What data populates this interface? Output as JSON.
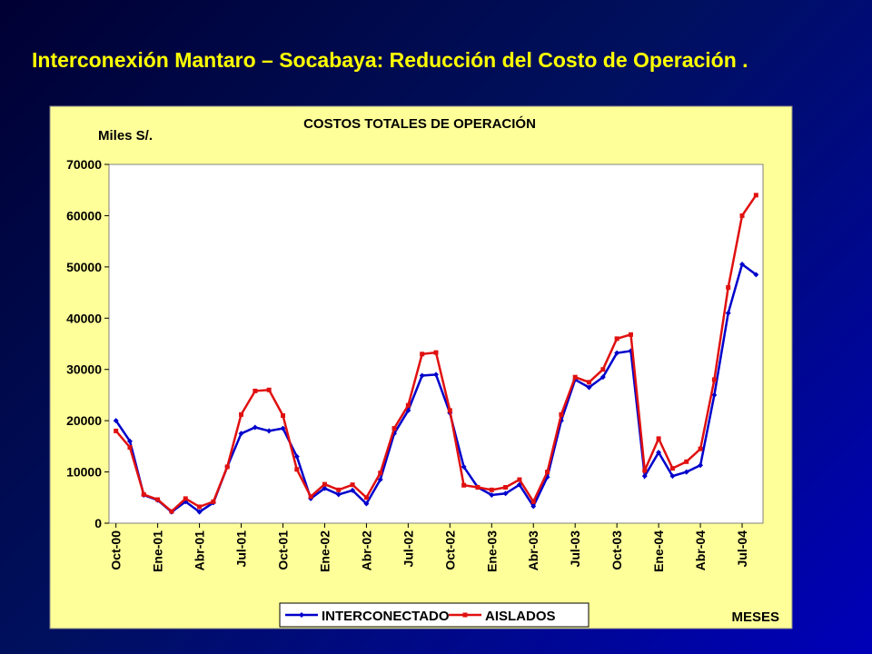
{
  "slide_title": "Interconexión Mantaro – Socabaya: Reducción del Costo de Operación .",
  "chart_data": {
    "type": "line",
    "title": "COSTOS TOTALES DE OPERACIÓN",
    "y_label": "Miles S/.",
    "x_label": "MESES",
    "categories": [
      "Oct-00",
      null,
      null,
      "Ene-01",
      null,
      null,
      "Abr-01",
      null,
      null,
      "Jul-01",
      null,
      null,
      "Oct-01",
      null,
      null,
      "Ene-02",
      null,
      null,
      "Abr-02",
      null,
      null,
      "Jul-02",
      null,
      null,
      "Oct-02",
      null,
      null,
      "Ene-03",
      null,
      null,
      "Abr-03",
      null,
      null,
      "Jul-03",
      null,
      null,
      "Oct-03",
      null,
      null,
      "Ene-04",
      null,
      null,
      "Abr-04",
      null,
      null,
      "Jul-04",
      null
    ],
    "series": [
      {
        "name": "INTERCONECTADO",
        "color": "#0000cc",
        "marker": "diamond",
        "values": [
          20000,
          16000,
          5500,
          4500,
          2200,
          4200,
          2200,
          4000,
          11000,
          17500,
          18700,
          18000,
          18500,
          13000,
          4800,
          6800,
          5600,
          6400,
          3800,
          8500,
          17500,
          22000,
          28800,
          29000,
          21500,
          11000,
          7000,
          5500,
          5800,
          7500,
          3300,
          9000,
          20000,
          28000,
          26500,
          28500,
          33200,
          33600,
          9200,
          13800,
          9200,
          10000,
          11300,
          25000,
          41000,
          50500,
          48500
        ]
      },
      {
        "name": "AISLADOS",
        "color": "#e01010",
        "marker": "square",
        "values": [
          18000,
          14800,
          5600,
          4600,
          2300,
          4800,
          3200,
          4200,
          11000,
          21200,
          25800,
          26000,
          21000,
          10500,
          5200,
          7600,
          6500,
          7500,
          5000,
          9800,
          18500,
          23000,
          33000,
          33300,
          22000,
          7400,
          7000,
          6500,
          7000,
          8500,
          4200,
          10000,
          21200,
          28500,
          27500,
          30000,
          36000,
          36800,
          10300,
          16500,
          10700,
          12000,
          14500,
          28000,
          46000,
          60000,
          64000
        ]
      }
    ],
    "ylim": [
      0,
      70000
    ],
    "yticks": [
      0,
      10000,
      20000,
      30000,
      40000,
      50000,
      60000,
      70000
    ],
    "grid": false,
    "legend": "bottom"
  }
}
